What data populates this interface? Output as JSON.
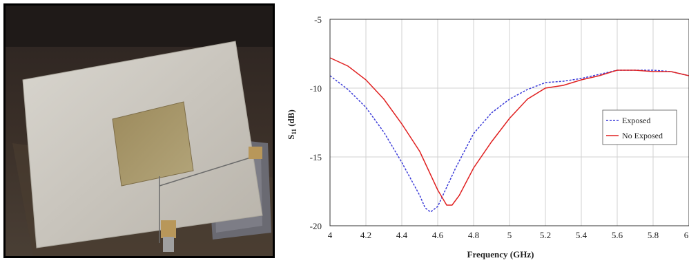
{
  "photo": {
    "description_icon": "antenna-photo"
  },
  "chart_data": {
    "type": "line",
    "title": "",
    "xlabel": "Frequency (GHz)",
    "ylabel_main": "S",
    "ylabel_sub": "11",
    "ylabel_unit": " (dB)",
    "xlim": [
      4,
      6
    ],
    "ylim": [
      -20,
      -5
    ],
    "x_ticks": [
      4,
      4.2,
      4.4,
      4.6,
      4.8,
      5,
      5.2,
      5.4,
      5.6,
      5.8,
      6
    ],
    "x_tick_labels": [
      "4",
      "4.2",
      "4.4",
      "4.6",
      "4.8",
      "5",
      "5.2",
      "5.4",
      "5.6",
      "5.8",
      "6"
    ],
    "y_ticks": [
      -20,
      -15,
      -10,
      -5
    ],
    "y_tick_labels": [
      "-20",
      "-15",
      "-10",
      "-5"
    ],
    "grid": true,
    "legend_position": "right-middle",
    "series": [
      {
        "name": "Exposed",
        "color": "#3a3ad8",
        "dash": "dashed",
        "points": [
          [
            4.0,
            -9.1
          ],
          [
            4.1,
            -10.1
          ],
          [
            4.2,
            -11.4
          ],
          [
            4.3,
            -13.2
          ],
          [
            4.4,
            -15.4
          ],
          [
            4.45,
            -16.6
          ],
          [
            4.5,
            -17.8
          ],
          [
            4.53,
            -18.7
          ],
          [
            4.56,
            -19.0
          ],
          [
            4.6,
            -18.6
          ],
          [
            4.65,
            -17.2
          ],
          [
            4.7,
            -15.8
          ],
          [
            4.8,
            -13.3
          ],
          [
            4.9,
            -11.8
          ],
          [
            5.0,
            -10.8
          ],
          [
            5.1,
            -10.1
          ],
          [
            5.2,
            -9.6
          ],
          [
            5.3,
            -9.5
          ],
          [
            5.4,
            -9.3
          ],
          [
            5.5,
            -9.0
          ],
          [
            5.6,
            -8.7
          ],
          [
            5.7,
            -8.7
          ],
          [
            5.8,
            -8.7
          ],
          [
            5.9,
            -8.8
          ],
          [
            6.0,
            -9.1
          ]
        ]
      },
      {
        "name": "No Exposed",
        "color": "#e02020",
        "dash": "solid",
        "points": [
          [
            4.0,
            -7.8
          ],
          [
            4.1,
            -8.4
          ],
          [
            4.2,
            -9.4
          ],
          [
            4.3,
            -10.8
          ],
          [
            4.4,
            -12.6
          ],
          [
            4.5,
            -14.6
          ],
          [
            4.55,
            -16.0
          ],
          [
            4.6,
            -17.4
          ],
          [
            4.65,
            -18.5
          ],
          [
            4.68,
            -18.5
          ],
          [
            4.72,
            -17.8
          ],
          [
            4.8,
            -15.8
          ],
          [
            4.9,
            -13.9
          ],
          [
            5.0,
            -12.2
          ],
          [
            5.1,
            -10.8
          ],
          [
            5.2,
            -10.0
          ],
          [
            5.3,
            -9.8
          ],
          [
            5.4,
            -9.4
          ],
          [
            5.5,
            -9.1
          ],
          [
            5.6,
            -8.7
          ],
          [
            5.7,
            -8.7
          ],
          [
            5.8,
            -8.8
          ],
          [
            5.9,
            -8.8
          ],
          [
            6.0,
            -9.1
          ]
        ]
      }
    ]
  }
}
